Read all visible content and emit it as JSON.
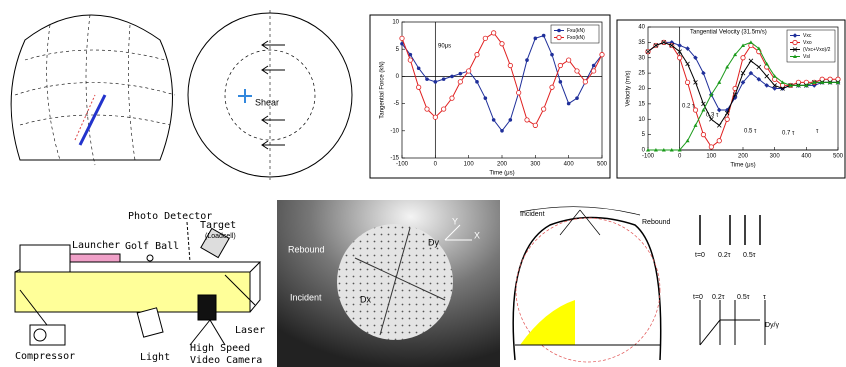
{
  "chart_data": [
    {
      "type": "line",
      "x_label": "Time (μs)",
      "y_label": "Tangential Force (kN)",
      "annotations": [
        "90μs"
      ],
      "x": [
        -100,
        -75,
        -50,
        -25,
        0,
        25,
        50,
        75,
        100,
        125,
        150,
        175,
        200,
        225,
        250,
        275,
        300,
        325,
        350,
        375,
        400,
        425,
        450,
        475,
        500
      ],
      "xlim": [
        -100,
        500
      ],
      "xticks": [
        -100,
        0,
        100,
        200,
        300,
        400,
        500
      ],
      "ylim": [
        -15,
        10
      ],
      "yticks": [
        -15,
        -10,
        -5,
        0,
        5,
        10
      ],
      "grid": false,
      "legend": "upper-right",
      "series": [
        {
          "name": "Fxu(kN)",
          "color": "#1f2f9a",
          "marker": "circle-filled",
          "values": [
            6,
            4,
            1.5,
            -0.5,
            -1,
            -0.5,
            0,
            0.5,
            1,
            -1,
            -4,
            -8,
            -10,
            -8,
            -3,
            3,
            7,
            7.5,
            4,
            -1,
            -5,
            -4,
            -1,
            2,
            4
          ]
        },
        {
          "name": "Fxo(kN)",
          "color": "#e02020",
          "marker": "circle-open",
          "values": [
            7,
            3,
            -2,
            -6,
            -7.5,
            -6,
            -4,
            -1,
            1,
            4,
            7,
            8,
            6,
            2,
            -3,
            -8,
            -9,
            -6,
            -2,
            2,
            3,
            1,
            -1,
            1,
            4
          ]
        }
      ]
    },
    {
      "type": "line",
      "x_label": "Time (μs)",
      "y_label": "Velocity (m/s)",
      "annotations": [
        "Tangential Velocity (31.5m/s)",
        "0.2 τ",
        "0.3 τ",
        "0.5 τ",
        "0.7 τ",
        "τ"
      ],
      "x": [
        -100,
        -75,
        -50,
        -25,
        0,
        25,
        50,
        75,
        100,
        125,
        150,
        175,
        200,
        225,
        250,
        275,
        300,
        325,
        350,
        375,
        400,
        425,
        450,
        475,
        500
      ],
      "xlim": [
        -100,
        500
      ],
      "xticks": [
        -100,
        0,
        100,
        200,
        300,
        400,
        500
      ],
      "ylim": [
        0,
        40
      ],
      "yticks": [
        0,
        5,
        10,
        15,
        20,
        25,
        30,
        35,
        40
      ],
      "grid": false,
      "legend": "upper-right",
      "series": [
        {
          "name": "Vxc",
          "color": "#1f2f9a",
          "marker": "diamond",
          "values": [
            32,
            34,
            35,
            35,
            34,
            33,
            30,
            25,
            18,
            13,
            13,
            17,
            22,
            25,
            23,
            21,
            20,
            20,
            21,
            21,
            21,
            21,
            22,
            22,
            22
          ]
        },
        {
          "name": "Vxo",
          "color": "#e02020",
          "marker": "circle-open",
          "values": [
            32,
            34,
            35,
            34,
            30,
            22,
            13,
            5,
            1,
            3,
            10,
            20,
            30,
            34,
            32,
            27,
            23,
            21,
            21,
            22,
            22,
            22,
            23,
            23,
            23
          ]
        },
        {
          "name": "(Vxc+Vxo)/2",
          "color": "#000000",
          "marker": "x",
          "values": [
            32,
            34,
            35,
            34,
            32,
            28,
            22,
            15,
            10,
            8,
            12,
            18,
            25,
            29,
            27,
            24,
            21,
            20,
            21,
            21,
            21,
            22,
            22,
            22,
            22
          ]
        },
        {
          "name": "Vsl",
          "color": "#1a9a1a",
          "marker": "triangle",
          "values": [
            0,
            0,
            0,
            0,
            0,
            3,
            8,
            13,
            18,
            22,
            27,
            31,
            34,
            35,
            33,
            28,
            24,
            22,
            21,
            21,
            21,
            22,
            22,
            22,
            22
          ]
        }
      ]
    }
  ],
  "shear_diagram": {
    "label": "Shear"
  },
  "apparatus": {
    "photo_detector": "Photo Detector",
    "target": "Target",
    "loadcell": "(Loadcell)",
    "launcher": "Launcher",
    "golf_ball": "Golf Ball",
    "compressor": "Compressor",
    "light": "Light",
    "camera_1": "High Speed",
    "camera_2": "Video Camera",
    "laser": "Laser"
  },
  "photo": {
    "rebound": "Rebound",
    "incident": "Incident",
    "dy": "Dy",
    "dx": "Dx",
    "y": "Y",
    "x": "X"
  },
  "contact_diagram": {
    "incident": "Incident",
    "rebound": "Rebound",
    "t0_a": "t=0",
    "t02_a": "0.2τ",
    "t05_a": "0.5τ",
    "t0_b": "t=0",
    "t02_b": "0.2τ",
    "t05_b": "0.5τ",
    "tau": "τ",
    "dy": "Dy/γ"
  }
}
